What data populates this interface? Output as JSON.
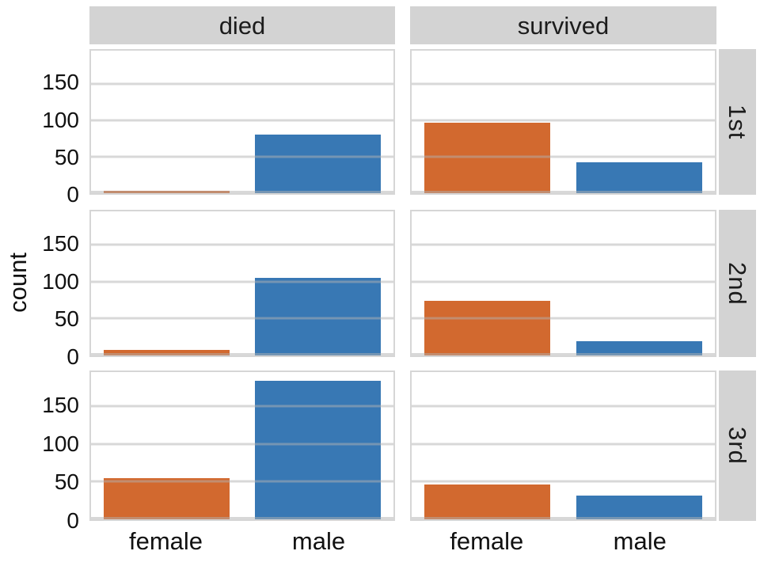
{
  "chart_data": {
    "type": "bar",
    "title": "",
    "xlabel": "",
    "ylabel": "count",
    "categories": [
      "female",
      "male"
    ],
    "col_facets": [
      "died",
      "survived"
    ],
    "row_facets": [
      "1st",
      "2nd",
      "3rd"
    ],
    "yticks": [
      0,
      50,
      100,
      150
    ],
    "ylim": [
      0,
      195
    ],
    "grid": true,
    "legend": "none",
    "colors": {
      "female": "#d2692f",
      "male": "#3878b4",
      "strip_bg": "#d3d3d3",
      "panel_border": "#d6d6d6",
      "text": "#111111"
    },
    "panels": [
      {
        "col": "died",
        "row": "1st",
        "values": {
          "female": 3,
          "male": 80
        }
      },
      {
        "col": "survived",
        "row": "1st",
        "values": {
          "female": 96,
          "male": 42
        }
      },
      {
        "col": "died",
        "row": "2nd",
        "values": {
          "female": 8,
          "male": 105
        }
      },
      {
        "col": "survived",
        "row": "2nd",
        "values": {
          "female": 74,
          "male": 19
        }
      },
      {
        "col": "died",
        "row": "3rd",
        "values": {
          "female": 55,
          "male": 184
        }
      },
      {
        "col": "survived",
        "row": "3rd",
        "values": {
          "female": 46,
          "male": 31
        }
      }
    ]
  }
}
